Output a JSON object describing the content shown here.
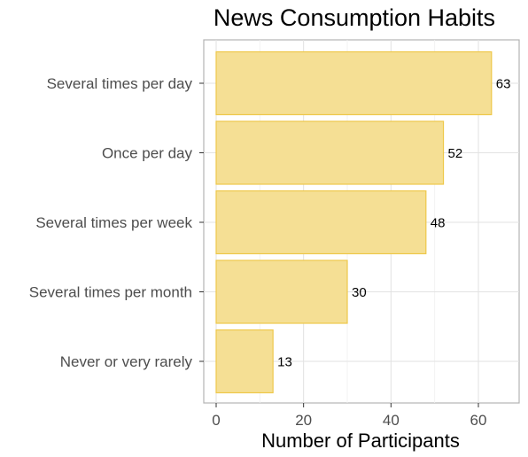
{
  "chart_data": {
    "type": "bar",
    "orientation": "horizontal",
    "title": "News Consumption Habits",
    "xlabel": "Number of Participants",
    "ylabel": "",
    "categories": [
      "Several times per day",
      "Once per day",
      "Several times per week",
      "Several times per month",
      "Never or very rarely"
    ],
    "values": [
      63,
      52,
      48,
      30,
      13
    ],
    "xlim": [
      0,
      70
    ],
    "xticks": [
      "0",
      "20",
      "40",
      "60"
    ],
    "grid": true,
    "legend": "none",
    "bar_color": "#f5df94",
    "bar_border_color": "#eec84a"
  }
}
